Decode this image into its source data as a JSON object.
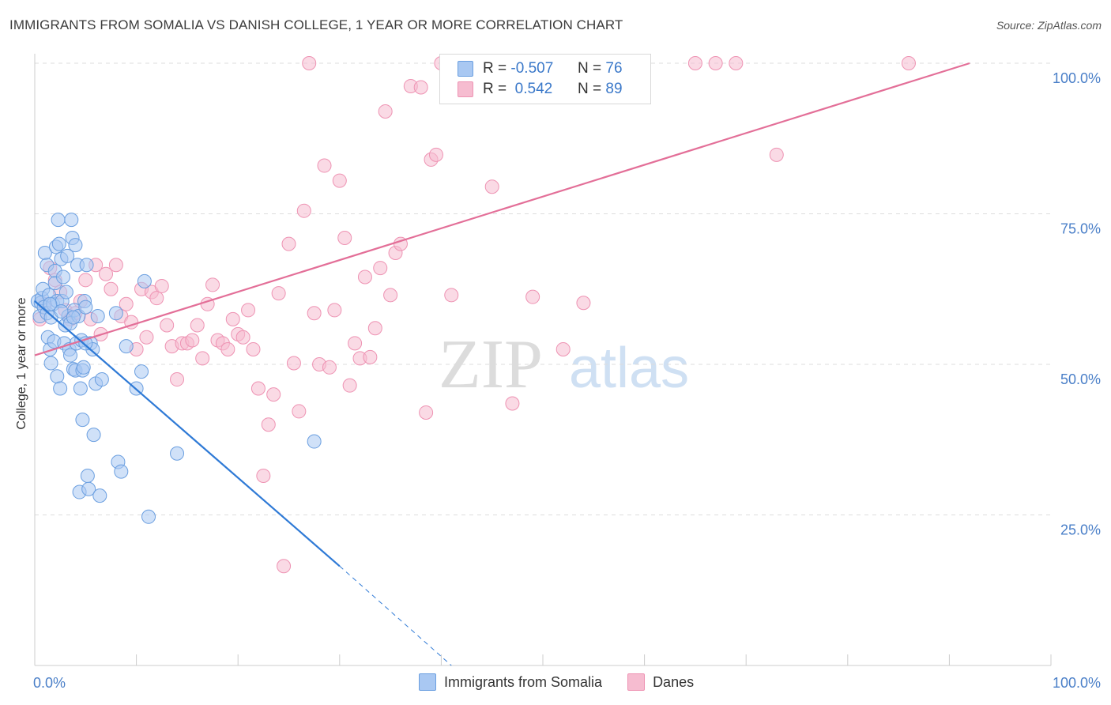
{
  "title": "IMMIGRANTS FROM SOMALIA VS DANISH COLLEGE, 1 YEAR OR MORE CORRELATION CHART",
  "source": "Source: ZipAtlas.com",
  "watermark": {
    "zip": "ZIP",
    "atlas": "atlas"
  },
  "legend": {
    "rows": [
      {
        "r_label": "R =",
        "r_value": "-0.507",
        "n_label": "N =",
        "n_value": "76"
      },
      {
        "r_label": "R =",
        "r_value": "0.542",
        "n_label": "N =",
        "n_value": "89"
      }
    ]
  },
  "bottom_legend": [
    "Immigrants from Somalia",
    "Danes"
  ],
  "chart_data": {
    "type": "scatter",
    "title": "IMMIGRANTS FROM SOMALIA VS DANISH COLLEGE, 1 YEAR OR MORE CORRELATION CHART",
    "xlabel": "",
    "ylabel": "College, 1 year or more",
    "xlim": [
      0,
      100
    ],
    "ylim": [
      0,
      100
    ],
    "x_tick_labels": [
      "0.0%",
      "100.0%"
    ],
    "y_tick_values": [
      25,
      50,
      75,
      100
    ],
    "y_tick_labels": [
      "25.0%",
      "50.0%",
      "75.0%",
      "100.0%"
    ],
    "grid": "horizontal dashed",
    "legend_position": "top-center",
    "colors": {
      "somalia_fill": "#a9c8f2",
      "somalia_stroke": "#6b9fe0",
      "somalia_line": "#2f7ad6",
      "danes_fill": "#f6bcd0",
      "danes_stroke": "#ee93b3",
      "danes_line": "#e36f98"
    },
    "series": [
      {
        "name": "Immigrants from Somalia",
        "r": -0.507,
        "n": 76,
        "trend": {
          "x0": 0,
          "y0": 60.5,
          "x1": 30,
          "y1": 16.5,
          "dash_to_x": 41,
          "dash_to_y": 0
        },
        "points": [
          [
            0.3,
            60.5
          ],
          [
            0.5,
            58
          ],
          [
            0.6,
            60.2
          ],
          [
            0.7,
            61
          ],
          [
            0.8,
            62.5
          ],
          [
            0.9,
            59.5
          ],
          [
            1,
            68.5
          ],
          [
            1.2,
            66.5
          ],
          [
            1.2,
            58.5
          ],
          [
            1.3,
            54.5
          ],
          [
            1.4,
            61.5
          ],
          [
            1.5,
            52.5
          ],
          [
            1.6,
            57.8
          ],
          [
            1.6,
            50.2
          ],
          [
            1.8,
            60
          ],
          [
            1.9,
            53.8
          ],
          [
            2,
            65.5
          ],
          [
            2,
            63.5
          ],
          [
            2.1,
            69.5
          ],
          [
            2.2,
            60.5
          ],
          [
            2.2,
            48
          ],
          [
            2.3,
            74
          ],
          [
            2.4,
            70
          ],
          [
            2.5,
            46
          ],
          [
            2.6,
            67.5
          ],
          [
            2.7,
            60.5
          ],
          [
            2.8,
            64.5
          ],
          [
            2.9,
            53.5
          ],
          [
            3,
            56.5
          ],
          [
            3.1,
            62
          ],
          [
            3.2,
            68
          ],
          [
            3.3,
            58
          ],
          [
            3.4,
            52.5
          ],
          [
            3.5,
            56.8
          ],
          [
            3.5,
            51.5
          ],
          [
            3.6,
            74
          ],
          [
            3.7,
            71
          ],
          [
            3.8,
            49.2
          ],
          [
            3.9,
            59
          ],
          [
            4,
            49
          ],
          [
            4,
            69.8
          ],
          [
            4.1,
            53.5
          ],
          [
            4.2,
            66.5
          ],
          [
            4.3,
            58
          ],
          [
            4.4,
            28.8
          ],
          [
            4.5,
            46
          ],
          [
            4.6,
            54
          ],
          [
            4.7,
            49
          ],
          [
            4.7,
            40.8
          ],
          [
            4.8,
            49.5
          ],
          [
            4.9,
            60.5
          ],
          [
            5,
            59.5
          ],
          [
            5.1,
            66.5
          ],
          [
            5.2,
            31.5
          ],
          [
            5.3,
            29.3
          ],
          [
            5.5,
            53.5
          ],
          [
            5.7,
            52.5
          ],
          [
            5.8,
            38.3
          ],
          [
            6,
            46.8
          ],
          [
            6.2,
            58
          ],
          [
            6.4,
            28.2
          ],
          [
            6.6,
            47.5
          ],
          [
            8,
            58.5
          ],
          [
            8.2,
            33.8
          ],
          [
            8.5,
            32.2
          ],
          [
            9,
            53
          ],
          [
            10,
            46
          ],
          [
            10.5,
            48.8
          ],
          [
            10.8,
            63.8
          ],
          [
            11.2,
            24.7
          ],
          [
            14,
            35.2
          ],
          [
            27.5,
            37.2
          ],
          [
            1.5,
            60
          ],
          [
            2.6,
            58.8
          ],
          [
            3.8,
            57.8
          ],
          [
            5,
            53.5
          ]
        ]
      },
      {
        "name": "Danes",
        "r": 0.542,
        "n": 89,
        "trend": {
          "x0": 0,
          "y0": 51.5,
          "x1": 92,
          "y1": 100
        },
        "points": [
          [
            0.5,
            57.5
          ],
          [
            1,
            60
          ],
          [
            1.5,
            66
          ],
          [
            2,
            64
          ],
          [
            2.5,
            62
          ],
          [
            3,
            59
          ],
          [
            3.5,
            57.5
          ],
          [
            4,
            58.5
          ],
          [
            4.5,
            60.5
          ],
          [
            5,
            64
          ],
          [
            5.5,
            57.5
          ],
          [
            6,
            66.5
          ],
          [
            6.5,
            55
          ],
          [
            7,
            65
          ],
          [
            7.5,
            62.5
          ],
          [
            8,
            66.5
          ],
          [
            8.5,
            58
          ],
          [
            9,
            60
          ],
          [
            9.5,
            57
          ],
          [
            10,
            52.5
          ],
          [
            10.5,
            62.5
          ],
          [
            11,
            54.5
          ],
          [
            11.5,
            62
          ],
          [
            12,
            61
          ],
          [
            12.5,
            63
          ],
          [
            13,
            56.5
          ],
          [
            13.5,
            53
          ],
          [
            14,
            47.5
          ],
          [
            14.5,
            53.5
          ],
          [
            15,
            53.5
          ],
          [
            15.5,
            54
          ],
          [
            16,
            56.5
          ],
          [
            16.5,
            51
          ],
          [
            17,
            60
          ],
          [
            17.5,
            63.2
          ],
          [
            18,
            54
          ],
          [
            18.5,
            53.5
          ],
          [
            19,
            52.5
          ],
          [
            19.5,
            57.5
          ],
          [
            20,
            55
          ],
          [
            20.5,
            54.5
          ],
          [
            21,
            59
          ],
          [
            21.5,
            52.5
          ],
          [
            22,
            46
          ],
          [
            22.5,
            31.5
          ],
          [
            23,
            40
          ],
          [
            23.5,
            45
          ],
          [
            24,
            61.8
          ],
          [
            24.5,
            16.5
          ],
          [
            25,
            70
          ],
          [
            25.5,
            50.2
          ],
          [
            26,
            42.2
          ],
          [
            26.5,
            75.5
          ],
          [
            27,
            100
          ],
          [
            27.5,
            58.5
          ],
          [
            28,
            50
          ],
          [
            28.5,
            83
          ],
          [
            29,
            49.5
          ],
          [
            29.5,
            59
          ],
          [
            30,
            80.5
          ],
          [
            30.5,
            71
          ],
          [
            31,
            46.5
          ],
          [
            31.5,
            53.5
          ],
          [
            32,
            51
          ],
          [
            32.5,
            64.5
          ],
          [
            33,
            51.2
          ],
          [
            33.5,
            56
          ],
          [
            34,
            66
          ],
          [
            34.5,
            92
          ],
          [
            35,
            61.5
          ],
          [
            35.5,
            68.5
          ],
          [
            36,
            70
          ],
          [
            37,
            96.2
          ],
          [
            38,
            96
          ],
          [
            38.5,
            42
          ],
          [
            39,
            84
          ],
          [
            39.5,
            84.8
          ],
          [
            40,
            100
          ],
          [
            41,
            61.5
          ],
          [
            45,
            79.5
          ],
          [
            47,
            43.5
          ],
          [
            49,
            61.2
          ],
          [
            52,
            52.5
          ],
          [
            54,
            60.2
          ],
          [
            65,
            100
          ],
          [
            67,
            100
          ],
          [
            69,
            100
          ],
          [
            73,
            84.8
          ],
          [
            86,
            100
          ]
        ]
      }
    ]
  }
}
